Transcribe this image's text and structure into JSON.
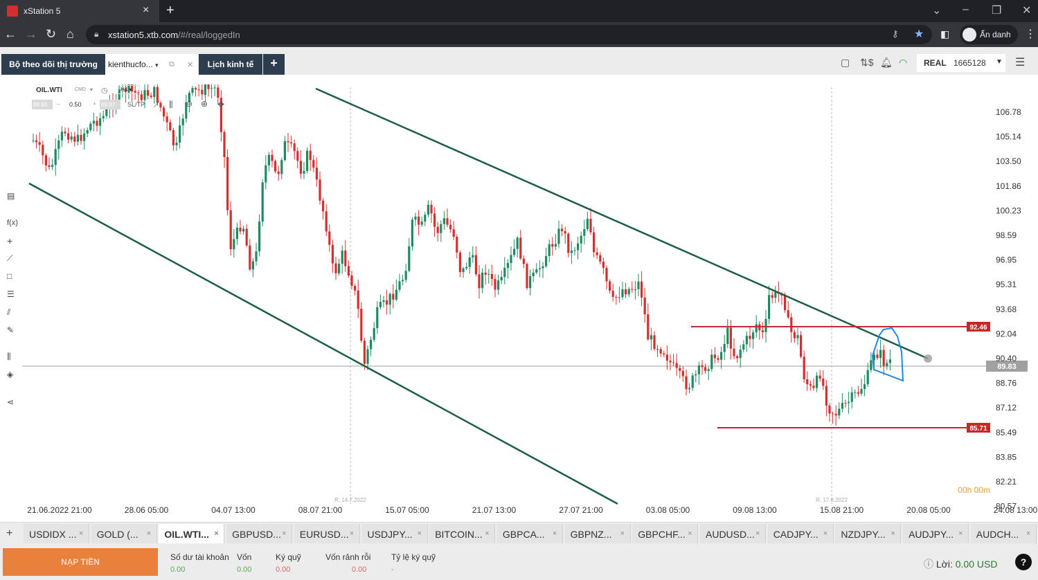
{
  "browser": {
    "tab_title": "xStation 5",
    "url_host": "xstation5.xtb.com",
    "url_path": "/#/real/loggedIn",
    "profile_label": "Ẩn danh"
  },
  "app": {
    "tabs": [
      {
        "label": "Bộ theo dõi thị trường"
      },
      {
        "label": "kienthucfo..."
      },
      {
        "label": "Lịch kinh tế"
      }
    ],
    "account": {
      "type": "REAL",
      "number": "1665128"
    }
  },
  "chart_header": {
    "symbol": "OIL.WTI",
    "cmd": "CMD",
    "timeframe": "H4",
    "sell_price": "89.83",
    "volume": "0.50",
    "buy_price": "89.87",
    "sltp": "SL/TP"
  },
  "chart_data": {
    "type": "candlestick",
    "symbol": "OIL.WTI",
    "timeframe": "H4",
    "y_ticks": [
      "106.78",
      "105.14",
      "103.50",
      "101.86",
      "100.23",
      "98.59",
      "96.95",
      "95.31",
      "93.68",
      "92.04",
      "90.40",
      "88.76",
      "87.12",
      "85.49",
      "83.85",
      "82.21",
      "80.57"
    ],
    "x_ticks": [
      "21.06.2022 21:00",
      "28.06 05:00",
      "04.07 13:00",
      "08.07 21:00",
      "15.07 05:00",
      "21.07 13:00",
      "27.07 21:00",
      "03.08 05:00",
      "09.08 13:00",
      "15.08 21:00",
      "20.08 05:00",
      "24.08 13:00"
    ],
    "ylim": [
      80.57,
      107.9
    ],
    "current_price": "89.83",
    "horizontal_levels": [
      {
        "value": 92.46,
        "label": "92.46",
        "color": "#c62828"
      },
      {
        "value": 85.71,
        "label": "85.71",
        "color": "#c62828"
      }
    ],
    "session_markers": [
      "R: 14.7.2022",
      "R: 17.8.2022"
    ],
    "countdown": "00h 00m",
    "colors": {
      "bull": "#1e8a60",
      "bear": "#d32f2f",
      "trend": "#1b5e44",
      "annotation": "#1e88e5"
    }
  },
  "instruments": [
    {
      "label": "USDIDX ..."
    },
    {
      "label": "GOLD (..."
    },
    {
      "label": "OIL.WTI..."
    },
    {
      "label": "GBPUSD..."
    },
    {
      "label": "EURUSD..."
    },
    {
      "label": "USDJPY..."
    },
    {
      "label": "BITCOIN..."
    },
    {
      "label": "GBPCA..."
    },
    {
      "label": "GBPNZ..."
    },
    {
      "label": "GBPCHF..."
    },
    {
      "label": "AUDUSD..."
    },
    {
      "label": "CADJPY..."
    },
    {
      "label": "NZDJPY..."
    },
    {
      "label": "AUDJPY..."
    },
    {
      "label": "AUDCH..."
    }
  ],
  "footer": {
    "deposit_label": "NẠP TIỀN",
    "stats": [
      {
        "label": "Số dư tài khoản",
        "value": "0.00"
      },
      {
        "label": "Vốn",
        "value": "0.00"
      },
      {
        "label": "Ký quỹ",
        "value": "0.00"
      },
      {
        "label": "Vốn rảnh rỗi",
        "value": "0.00"
      },
      {
        "label": "Tỷ lệ ký quỹ",
        "value": "-"
      }
    ],
    "profit_label": "Lời:",
    "profit_value": "0.00 USD"
  }
}
